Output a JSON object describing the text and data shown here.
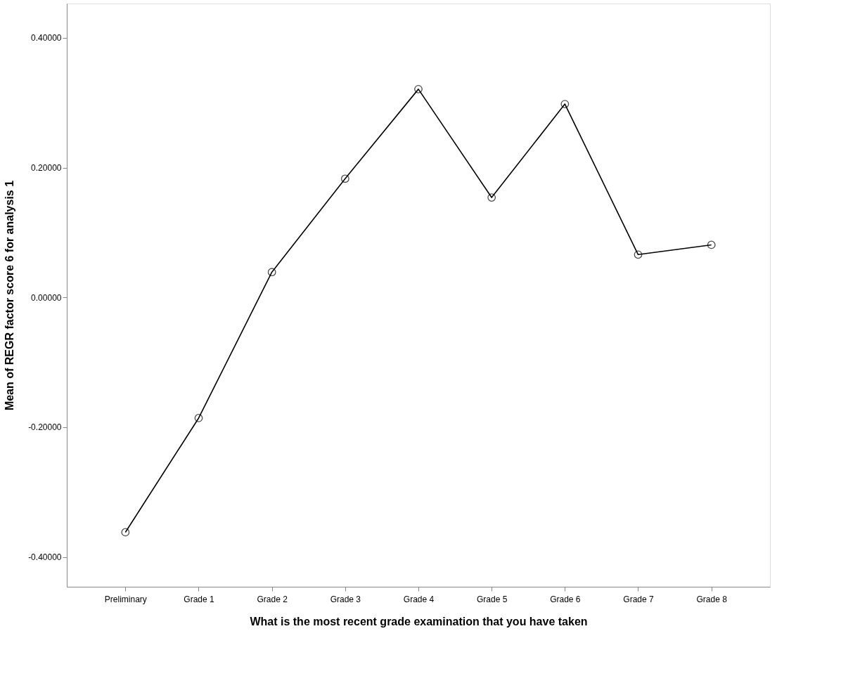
{
  "chart_data": {
    "type": "line",
    "xlabel": "What is the most recent grade examination that you have taken",
    "ylabel": "Mean of REGR factor score   6 for analysis 1",
    "categories": [
      "Preliminary",
      "Grade 1",
      "Grade 2",
      "Grade 3",
      "Grade 4",
      "Grade 5",
      "Grade 6",
      "Grade 7",
      "Grade 8"
    ],
    "series": [
      {
        "color": "#000000",
        "values": [
          -0.362,
          -0.186,
          0.039,
          0.183,
          0.321,
          0.154,
          0.298,
          0.066,
          0.081
        ]
      }
    ],
    "ylim": [
      -0.446,
      0.453
    ],
    "yticks": [
      {
        "value": -0.4,
        "label": "-0.40000"
      },
      {
        "value": -0.2,
        "label": "-0.20000"
      },
      {
        "value": 0,
        "label": "0.00000"
      },
      {
        "value": 0.2,
        "label": "0.20000"
      },
      {
        "value": 0.4,
        "label": "0.40000"
      }
    ],
    "grid": false,
    "marker": "circle",
    "line_style": "solid"
  }
}
